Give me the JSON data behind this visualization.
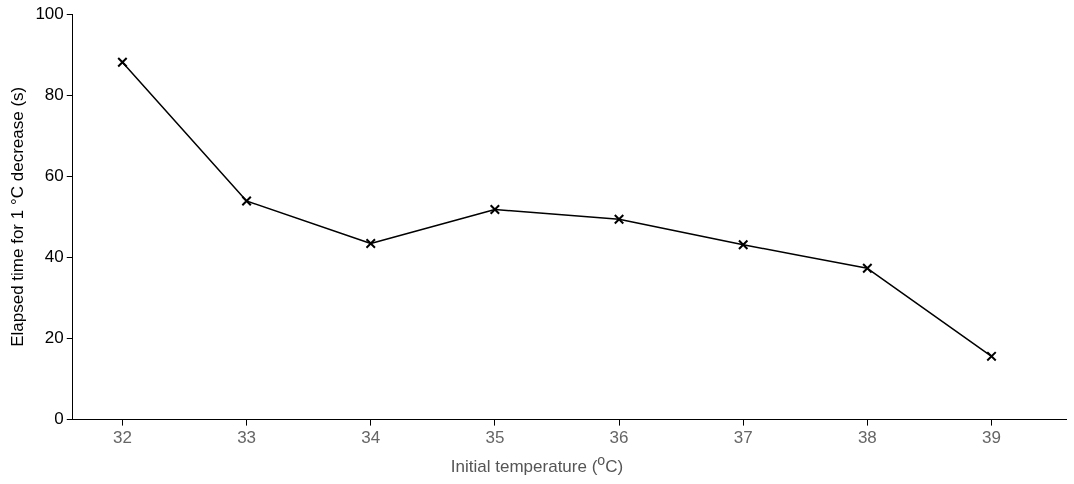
{
  "chart_data": {
    "type": "line",
    "xlabel": "Initial temperature ($^{o}$C)",
    "ylabel": "Elapsed time for 1 °C decrease (s)",
    "x": [
      32,
      33,
      34,
      35,
      36,
      37,
      38,
      39
    ],
    "series": [
      {
        "color": "#000000",
        "values": [
          88.1,
          53.9,
          43.4,
          51.8,
          49.4,
          43.1,
          37.3,
          15.6
        ]
      }
    ],
    "xlim": [
      31.6,
      39.6
    ],
    "xticks": [
      32,
      33,
      34,
      35,
      36,
      37,
      38,
      39
    ],
    "ylim": [
      0,
      100
    ],
    "yticks": [
      0,
      20,
      40,
      60,
      80,
      100
    ],
    "grid": false,
    "legend": false,
    "marker": "cross",
    "line_style": "solid"
  }
}
